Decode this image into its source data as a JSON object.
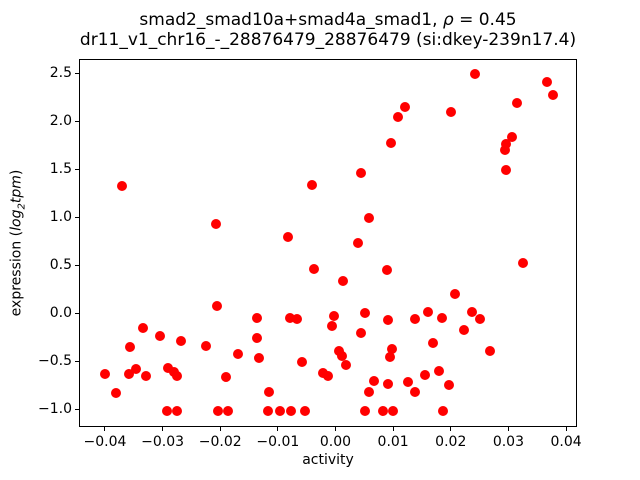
{
  "title": {
    "line1_prefix": "smad2_smad10a+smad4a_smad1, ",
    "line1_rho": "ρ",
    "line1_suffix": " = 0.45",
    "line2": "dr11_v1_chr16_-_28876479_28876479 (si:dkey-239n17.4)"
  },
  "axes": {
    "xlabel": "activity",
    "ylabel_prefix": "expression (",
    "ylabel_log": "log",
    "ylabel_sub": "2",
    "ylabel_tpm": "tpm",
    "ylabel_suffix": ")"
  },
  "chart_data": {
    "type": "scatter",
    "title": "smad2_smad10a+smad4a_smad1, ρ = 0.45",
    "subtitle": "dr11_v1_chr16_-_28876479_28876479 (si:dkey-239n17.4)",
    "xlabel": "activity",
    "ylabel": "expression (log2tpm)",
    "correlation_rho": 0.45,
    "marker_color": "#ff0000",
    "grid": false,
    "legend": "none",
    "xlim": [
      -0.0445,
      0.0419
    ],
    "ylim": [
      -1.1875,
      2.646
    ],
    "xticks": [
      -0.04,
      -0.03,
      -0.02,
      -0.01,
      0.0,
      0.01,
      0.02,
      0.03,
      0.04
    ],
    "xtick_labels": [
      "−0.04",
      "−0.03",
      "−0.02",
      "−0.01",
      "0.00",
      "0.01",
      "0.02",
      "0.03",
      "0.04"
    ],
    "yticks": [
      2.5,
      2.0,
      1.5,
      1.0,
      0.5,
      0.0,
      -0.5,
      -1.0
    ],
    "ytick_labels": [
      "2.5",
      "2.0",
      "1.5",
      "1.0",
      "0.5",
      "0.0",
      "−0.5",
      "−1.0"
    ],
    "points": [
      [
        0.0242,
        2.49
      ],
      [
        0.0367,
        2.41
      ],
      [
        0.0378,
        2.27
      ],
      [
        0.0315,
        2.19
      ],
      [
        0.0201,
        2.09
      ],
      [
        0.0121,
        2.15
      ],
      [
        0.0109,
        2.04
      ],
      [
        0.0306,
        1.83
      ],
      [
        0.0296,
        1.76
      ],
      [
        0.0294,
        1.7
      ],
      [
        0.0096,
        1.77
      ],
      [
        0.0296,
        1.49
      ],
      [
        0.0044,
        1.46
      ],
      [
        -0.0371,
        1.32
      ],
      [
        -0.0041,
        1.33
      ],
      [
        0.0058,
        0.99
      ],
      [
        -0.0207,
        0.93
      ],
      [
        -0.0082,
        0.79
      ],
      [
        0.0039,
        0.73
      ],
      [
        0.0326,
        0.52
      ],
      [
        -0.0037,
        0.46
      ],
      [
        0.0089,
        0.45
      ],
      [
        0.0013,
        0.33
      ],
      [
        0.0207,
        0.2
      ],
      [
        -0.0206,
        0.07
      ],
      [
        0.0051,
        0.0
      ],
      [
        0.0161,
        0.01
      ],
      [
        0.0237,
        0.01
      ],
      [
        -0.0003,
        -0.03
      ],
      [
        -0.0136,
        -0.05
      ],
      [
        -0.0079,
        -0.05
      ],
      [
        -0.0067,
        -0.06
      ],
      [
        0.0091,
        -0.07
      ],
      [
        0.0138,
        -0.06
      ],
      [
        0.0184,
        -0.05
      ],
      [
        0.0251,
        -0.06
      ],
      [
        -0.0006,
        -0.14
      ],
      [
        -0.0334,
        -0.16
      ],
      [
        0.0223,
        -0.18
      ],
      [
        0.0044,
        -0.21
      ],
      [
        -0.0305,
        -0.24
      ],
      [
        -0.0136,
        -0.26
      ],
      [
        -0.0268,
        -0.29
      ],
      [
        0.0169,
        -0.31
      ],
      [
        -0.0225,
        -0.34
      ],
      [
        -0.0357,
        -0.35
      ],
      [
        0.0098,
        -0.38
      ],
      [
        0.0006,
        -0.4
      ],
      [
        0.0268,
        -0.4
      ],
      [
        -0.0169,
        -0.43
      ],
      [
        0.0011,
        -0.45
      ],
      [
        0.0095,
        -0.46
      ],
      [
        -0.0133,
        -0.47
      ],
      [
        -0.0058,
        -0.51
      ],
      [
        0.0018,
        -0.54
      ],
      [
        -0.0291,
        -0.57
      ],
      [
        -0.0346,
        -0.58
      ],
      [
        0.018,
        -0.6
      ],
      [
        -0.028,
        -0.61
      ],
      [
        -0.0022,
        -0.63
      ],
      [
        -0.04,
        -0.64
      ],
      [
        -0.0359,
        -0.64
      ],
      [
        0.0155,
        -0.65
      ],
      [
        -0.0329,
        -0.66
      ],
      [
        -0.0275,
        -0.66
      ],
      [
        -0.0013,
        -0.66
      ],
      [
        -0.019,
        -0.67
      ],
      [
        0.0067,
        -0.71
      ],
      [
        0.0126,
        -0.72
      ],
      [
        0.0091,
        -0.74
      ],
      [
        0.0197,
        -0.75
      ],
      [
        -0.0381,
        -0.83
      ],
      [
        -0.0115,
        -0.82
      ],
      [
        0.0058,
        -0.82
      ],
      [
        0.0138,
        -0.82
      ],
      [
        -0.0293,
        -1.02
      ],
      [
        -0.0275,
        -1.02
      ],
      [
        -0.0204,
        -1.02
      ],
      [
        -0.0187,
        -1.02
      ],
      [
        -0.0117,
        -1.02
      ],
      [
        -0.0096,
        -1.02
      ],
      [
        -0.0077,
        -1.02
      ],
      [
        -0.0053,
        -1.02
      ],
      [
        0.0051,
        -1.02
      ],
      [
        0.0082,
        -1.02
      ],
      [
        0.01,
        -1.02
      ],
      [
        0.0187,
        -1.02
      ]
    ]
  }
}
